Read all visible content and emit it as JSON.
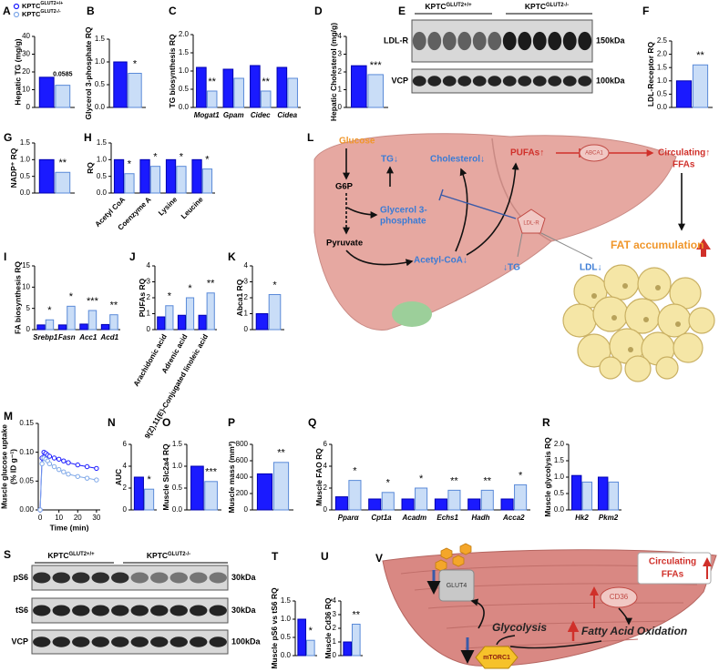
{
  "legend": [
    {
      "base": "KPTC",
      "sup": "GLUT2+/+",
      "color": "#1a1aff"
    },
    {
      "base": "KPTC",
      "sup": "GLUT2-/-",
      "color": "#7fa8e8"
    }
  ],
  "chart_data": [
    {
      "type": "bar",
      "panel": "A",
      "ylabel": "Hepatic TG (mg/g)",
      "ylim": [
        0,
        40
      ],
      "yticks": [
        0,
        10,
        20,
        30,
        40
      ],
      "series": [
        {
          "color": "#1a1aff",
          "edgecolor": "#0000b0",
          "values": [
            17
          ]
        },
        {
          "color": "#c9ddf7",
          "edgecolor": "#5a8ad8",
          "values": [
            12.5
          ]
        }
      ],
      "significance": [
        "0.0585"
      ]
    },
    {
      "type": "bar",
      "panel": "B",
      "ylabel": "Glycerol 3-phosphate RQ",
      "ylim": [
        0,
        1.5
      ],
      "yticks": [
        {
          "value": 0,
          "label": "0.0"
        },
        {
          "value": 0.5,
          "label": "0.5"
        },
        {
          "value": 1,
          "label": "1.0"
        },
        {
          "value": 1.5,
          "label": "1.5"
        }
      ],
      "series": [
        {
          "color": "#1a1aff",
          "edgecolor": "#0000b0",
          "values": [
            1.0
          ]
        },
        {
          "color": "#c9ddf7",
          "edgecolor": "#5a8ad8",
          "values": [
            0.75
          ]
        }
      ],
      "significance": [
        "*"
      ]
    },
    {
      "type": "bar",
      "panel": "C",
      "ylabel": "TG biosynthesis RQ",
      "ylim": [
        0,
        2
      ],
      "yticks": [
        {
          "value": 0,
          "label": "0.0"
        },
        {
          "value": 0.5,
          "label": "0.5"
        },
        {
          "value": 1,
          "label": "1.0"
        },
        {
          "value": 1.5,
          "label": "1.5"
        },
        {
          "value": 2,
          "label": "2.0"
        }
      ],
      "categories": [
        "Mogat1",
        "Gpam",
        "Cidec",
        "Cidea"
      ],
      "italic_categories": true,
      "series": [
        {
          "color": "#1a1aff",
          "edgecolor": "#0000b0",
          "values": [
            1.1,
            1.05,
            1.15,
            1.1
          ]
        },
        {
          "color": "#c9ddf7",
          "edgecolor": "#5a8ad8",
          "values": [
            0.45,
            0.8,
            0.45,
            0.8
          ]
        }
      ],
      "significance": [
        "**",
        null,
        "**",
        null
      ]
    },
    {
      "type": "bar",
      "panel": "D",
      "ylabel": "Hepatic Cholesterol (mg/g)",
      "ylim": [
        0,
        4
      ],
      "yticks": [
        0,
        1,
        2,
        3,
        4
      ],
      "series": [
        {
          "color": "#1a1aff",
          "edgecolor": "#0000b0",
          "values": [
            2.35
          ]
        },
        {
          "color": "#c9ddf7",
          "edgecolor": "#5a8ad8",
          "values": [
            1.85
          ]
        }
      ],
      "significance": [
        "***"
      ]
    },
    {
      "type": "bar",
      "panel": "F",
      "ylabel": "LDL-Receptor RQ",
      "ylim": [
        0,
        2.5
      ],
      "yticks": [
        {
          "value": 0,
          "label": "0.0"
        },
        {
          "value": 0.5,
          "label": "0.5"
        },
        {
          "value": 1,
          "label": "1.0"
        },
        {
          "value": 1.5,
          "label": "1.5"
        },
        {
          "value": 2,
          "label": "2.0"
        },
        {
          "value": 2.5,
          "label": "2.5"
        }
      ],
      "series": [
        {
          "color": "#1a1aff",
          "edgecolor": "#0000b0",
          "values": [
            1.0
          ]
        },
        {
          "color": "#c9ddf7",
          "edgecolor": "#5a8ad8",
          "values": [
            1.6
          ]
        }
      ],
      "significance": [
        "**"
      ]
    },
    {
      "type": "bar",
      "panel": "G",
      "ylabel": "NADP⁺ RQ",
      "ylim": [
        0,
        1.5
      ],
      "yticks": [
        {
          "value": 0,
          "label": "0.0"
        },
        {
          "value": 0.5,
          "label": "0.5"
        },
        {
          "value": 1,
          "label": "1.0"
        },
        {
          "value": 1.5,
          "label": "1.5"
        }
      ],
      "series": [
        {
          "color": "#1a1aff",
          "edgecolor": "#0000b0",
          "values": [
            1.0
          ]
        },
        {
          "color": "#c9ddf7",
          "edgecolor": "#5a8ad8",
          "values": [
            0.62
          ]
        }
      ],
      "significance": [
        "**"
      ]
    },
    {
      "type": "bar",
      "panel": "H",
      "ylabel": "RQ",
      "ylim": [
        0,
        1.5
      ],
      "yticks": [
        {
          "value": 0,
          "label": "0.0"
        },
        {
          "value": 0.5,
          "label": "0.5"
        },
        {
          "value": 1,
          "label": "1.0"
        },
        {
          "value": 1.5,
          "label": "1.5"
        }
      ],
      "categories": [
        "Acetyl CoA",
        "Coenzyme A",
        "Lysine",
        "Leucine"
      ],
      "xtick_rotation": -45,
      "series": [
        {
          "color": "#1a1aff",
          "edgecolor": "#0000b0",
          "values": [
            1.0,
            1.0,
            1.0,
            1.0
          ]
        },
        {
          "color": "#c9ddf7",
          "edgecolor": "#5a8ad8",
          "values": [
            0.58,
            0.8,
            0.8,
            0.72
          ]
        }
      ],
      "significance": [
        "*",
        "*",
        "*",
        "*"
      ]
    },
    {
      "type": "bar",
      "panel": "I",
      "ylabel": "FA biosynthesis RQ",
      "ylim": [
        0,
        15
      ],
      "yticks": [
        0,
        5,
        10,
        15
      ],
      "categories": [
        "Srebp1",
        "Fasn",
        "Acc1",
        "Acd1"
      ],
      "italic_categories": true,
      "series": [
        {
          "color": "#1a1aff",
          "edgecolor": "#0000b0",
          "values": [
            1.1,
            1.1,
            1.3,
            1.2
          ]
        },
        {
          "color": "#c9ddf7",
          "edgecolor": "#5a8ad8",
          "values": [
            2.3,
            5.5,
            4.5,
            3.5
          ]
        }
      ],
      "significance": [
        "*",
        "*",
        "***",
        "**"
      ]
    },
    {
      "type": "bar",
      "panel": "J",
      "ylabel": "PUFAs RQ",
      "ylim": [
        0,
        4
      ],
      "yticks": [
        0,
        1,
        2,
        3,
        4
      ],
      "categories": [
        "Arachidonic acid",
        "Adrenic acid",
        "9(Z),11(E)-Conjugated linoleic acid"
      ],
      "xtick_rotation": -60,
      "series": [
        {
          "color": "#1a1aff",
          "edgecolor": "#0000b0",
          "values": [
            0.8,
            0.9,
            0.9
          ]
        },
        {
          "color": "#c9ddf7",
          "edgecolor": "#5a8ad8",
          "values": [
            1.5,
            2.0,
            2.3
          ]
        }
      ],
      "significance": [
        "*",
        "*",
        "**"
      ]
    },
    {
      "type": "bar",
      "panel": "K",
      "ylabel": "Abca1 RQ",
      "ylim": [
        0,
        4
      ],
      "yticks": [
        0,
        1,
        2,
        3,
        4
      ],
      "series": [
        {
          "color": "#1a1aff",
          "edgecolor": "#0000b0",
          "values": [
            1.0
          ]
        },
        {
          "color": "#c9ddf7",
          "edgecolor": "#5a8ad8",
          "values": [
            2.2
          ]
        }
      ],
      "significance": [
        "*"
      ]
    },
    {
      "type": "line",
      "panel": "M",
      "ylabel": [
        "Muscle glucose uptake",
        "(% ID g⁻¹)"
      ],
      "xlabel": "Time (min)",
      "xlim": [
        -1,
        32
      ],
      "xticks": [
        0,
        10,
        20,
        30
      ],
      "ylim": [
        0,
        0.15
      ],
      "yticks": [
        {
          "value": 0,
          "label": "0.00"
        },
        {
          "value": 0.05,
          "label": "0.05"
        },
        {
          "value": 0.1,
          "label": "0.10"
        },
        {
          "value": 0.15,
          "label": "0.15"
        }
      ],
      "x": [
        0,
        1,
        2,
        3,
        4,
        5,
        7.5,
        10,
        12.5,
        15,
        20,
        25,
        30
      ],
      "series": [
        {
          "color": "#1a1aff",
          "values": [
            0,
            0.09,
            0.1,
            0.098,
            0.095,
            0.093,
            0.09,
            0.088,
            0.085,
            0.082,
            0.078,
            0.075,
            0.072
          ]
        },
        {
          "color": "#7fa8e8",
          "values": [
            0,
            0.08,
            0.09,
            0.088,
            0.085,
            0.08,
            0.075,
            0.07,
            0.066,
            0.062,
            0.058,
            0.055,
            0.052
          ]
        }
      ]
    },
    {
      "type": "bar",
      "panel": "N",
      "ylabel": "AUC",
      "ylim": [
        0,
        6
      ],
      "yticks": [
        0,
        2,
        4,
        6
      ],
      "series": [
        {
          "color": "#1a1aff",
          "edgecolor": "#0000b0",
          "values": [
            3.0
          ]
        },
        {
          "color": "#c9ddf7",
          "edgecolor": "#5a8ad8",
          "values": [
            1.9
          ]
        }
      ],
      "significance": [
        "*"
      ]
    },
    {
      "type": "bar",
      "panel": "O",
      "ylabel": "Muscle Slc2a4 RQ",
      "ylim": [
        0,
        1.5
      ],
      "yticks": [
        {
          "value": 0,
          "label": "0.0"
        },
        {
          "value": 0.5,
          "label": "0.5"
        },
        {
          "value": 1,
          "label": "1.0"
        },
        {
          "value": 1.5,
          "label": "1.5"
        }
      ],
      "series": [
        {
          "color": "#1a1aff",
          "edgecolor": "#0000b0",
          "values": [
            1.0
          ]
        },
        {
          "color": "#c9ddf7",
          "edgecolor": "#5a8ad8",
          "values": [
            0.65
          ]
        }
      ],
      "significance": [
        "***"
      ]
    },
    {
      "type": "bar",
      "panel": "P",
      "ylabel": "Muscle mass (mm³)",
      "ylim": [
        0,
        800
      ],
      "yticks": [
        0,
        200,
        400,
        600,
        800
      ],
      "series": [
        {
          "color": "#1a1aff",
          "edgecolor": "#0000b0",
          "values": [
            440
          ]
        },
        {
          "color": "#c9ddf7",
          "edgecolor": "#5a8ad8",
          "values": [
            580
          ]
        }
      ],
      "significance": [
        "**"
      ]
    },
    {
      "type": "bar",
      "panel": "Q",
      "ylabel": "Muscle FAO RQ",
      "ylim": [
        0,
        6
      ],
      "yticks": [
        0,
        2,
        4,
        6
      ],
      "categories": [
        "Pparα",
        "Cpt1a",
        "Acadm",
        "Echs1",
        "Hadh",
        "Acca2"
      ],
      "italic_categories": true,
      "series": [
        {
          "color": "#1a1aff",
          "edgecolor": "#0000b0",
          "values": [
            1.2,
            1.0,
            1.0,
            1.0,
            1.0,
            1.0
          ]
        },
        {
          "color": "#c9ddf7",
          "edgecolor": "#5a8ad8",
          "values": [
            2.7,
            1.6,
            2.0,
            1.8,
            1.8,
            2.3
          ]
        }
      ],
      "significance": [
        "*",
        "*",
        "*",
        "**",
        "**",
        "*"
      ]
    },
    {
      "type": "bar",
      "panel": "R",
      "ylabel": "Muscle glycolysis RQ",
      "ylim": [
        0,
        2
      ],
      "yticks": [
        {
          "value": 0,
          "label": "0.0"
        },
        {
          "value": 0.5,
          "label": "0.5"
        },
        {
          "value": 1,
          "label": "1.0"
        },
        {
          "value": 1.5,
          "label": "1.5"
        },
        {
          "value": 2,
          "label": "2.0"
        }
      ],
      "categories": [
        "Hk2",
        "Pkm2"
      ],
      "italic_categories": true,
      "series": [
        {
          "color": "#1a1aff",
          "edgecolor": "#0000b0",
          "values": [
            1.05,
            1.0
          ]
        },
        {
          "color": "#c9ddf7",
          "edgecolor": "#5a8ad8",
          "values": [
            0.85,
            0.85
          ]
        }
      ],
      "significance": [
        null,
        null
      ]
    },
    {
      "type": "bar",
      "panel": "T",
      "ylabel": "Muscle pS6 vs tS6 RQ",
      "ylim": [
        0,
        1.5
      ],
      "yticks": [
        {
          "value": 0,
          "label": "0.0"
        },
        {
          "value": 0.5,
          "label": "0.5"
        },
        {
          "value": 1,
          "label": "1.0"
        },
        {
          "value": 1.5,
          "label": "1.5"
        }
      ],
      "series": [
        {
          "color": "#1a1aff",
          "edgecolor": "#0000b0",
          "values": [
            1.0
          ]
        },
        {
          "color": "#c9ddf7",
          "edgecolor": "#5a8ad8",
          "values": [
            0.42
          ]
        }
      ],
      "significance": [
        "*"
      ]
    },
    {
      "type": "bar",
      "panel": "U",
      "ylabel": "Muscle Cd36 RQ",
      "ylim": [
        0,
        4
      ],
      "yticks": [
        0,
        1,
        2,
        3,
        4
      ],
      "series": [
        {
          "color": "#1a1aff",
          "edgecolor": "#0000b0",
          "values": [
            1.0
          ]
        },
        {
          "color": "#c9ddf7",
          "edgecolor": "#5a8ad8",
          "values": [
            2.3
          ]
        }
      ],
      "significance": [
        "**"
      ]
    }
  ],
  "blots": [
    {
      "panel": "E",
      "groups": [
        {
          "base": "KPTC",
          "sup": "GLUT2+/+"
        },
        {
          "base": "KPTC",
          "sup": "GLUT2-/-"
        }
      ],
      "rows": [
        {
          "label": "LDL-R",
          "size": "150kDa"
        },
        {
          "label": "VCP",
          "size": "100kDa"
        }
      ]
    },
    {
      "panel": "S",
      "groups": [
        {
          "base": "KPTC",
          "sup": "GLUT2+/+"
        },
        {
          "base": "KPTC",
          "sup": "GLUT2-/-"
        }
      ],
      "rows": [
        {
          "label": "pS6",
          "size": "30kDa"
        },
        {
          "label": "tS6",
          "size": "30kDa"
        },
        {
          "label": "VCP",
          "size": "100kDa"
        }
      ]
    }
  ],
  "diagrams": [
    {
      "panel": "L",
      "glucose": "Glucose",
      "g6p": "G6P",
      "glycerol": [
        "Glycerol 3-",
        "phosphate"
      ],
      "pyruvate": "Pyruvate",
      "acetyl": "Acetyl-CoA↓",
      "tg": "TG↓",
      "cholesterol": "Cholesterol↓",
      "pufas": "PUFAs↑",
      "abca1": "ABCA1",
      "circulating": [
        "Circulating↑",
        "FFAs"
      ],
      "fat": "FAT accumulation",
      "ldlr": "LDL-R",
      "tg2": "↓TG",
      "ldl": "LDL↓"
    },
    {
      "panel": "V",
      "glut4": "GLUT4",
      "glycolysis": "Glycolysis",
      "fao": "Fatty Acid Oxidation",
      "cd36": "CD36",
      "circulating": [
        "Circulating",
        "FFAs"
      ],
      "mtorc1": "mTORC1"
    }
  ]
}
